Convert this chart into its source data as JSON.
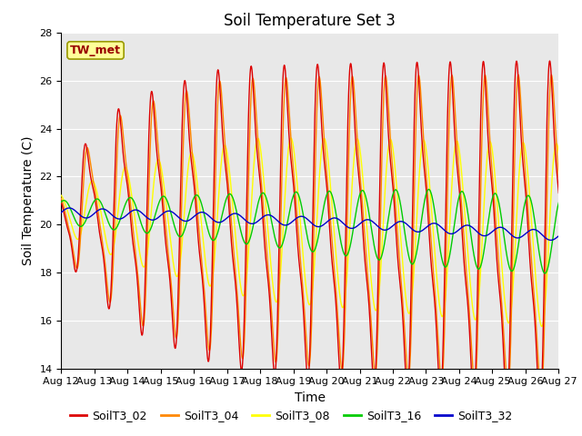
{
  "title": "Soil Temperature Set 3",
  "xlabel": "Time",
  "ylabel": "Soil Temperature (C)",
  "ylim": [
    14,
    28
  ],
  "x_tick_labels": [
    "Aug 12",
    "Aug 13",
    "Aug 14",
    "Aug 15",
    "Aug 16",
    "Aug 17",
    "Aug 18",
    "Aug 19",
    "Aug 20",
    "Aug 21",
    "Aug 22",
    "Aug 23",
    "Aug 24",
    "Aug 25",
    "Aug 26",
    "Aug 27"
  ],
  "annotation_text": "TW_met",
  "annotation_color": "#990000",
  "annotation_bg": "#ffff99",
  "series_colors": {
    "SoilT3_02": "#dd0000",
    "SoilT3_04": "#ff8800",
    "SoilT3_08": "#ffff00",
    "SoilT3_16": "#00cc00",
    "SoilT3_32": "#0000cc"
  },
  "bg_color": "#e8e8e8",
  "grid_color": "#ffffff",
  "title_fontsize": 12,
  "axis_fontsize": 10,
  "tick_fontsize": 8,
  "lw": 1.0
}
